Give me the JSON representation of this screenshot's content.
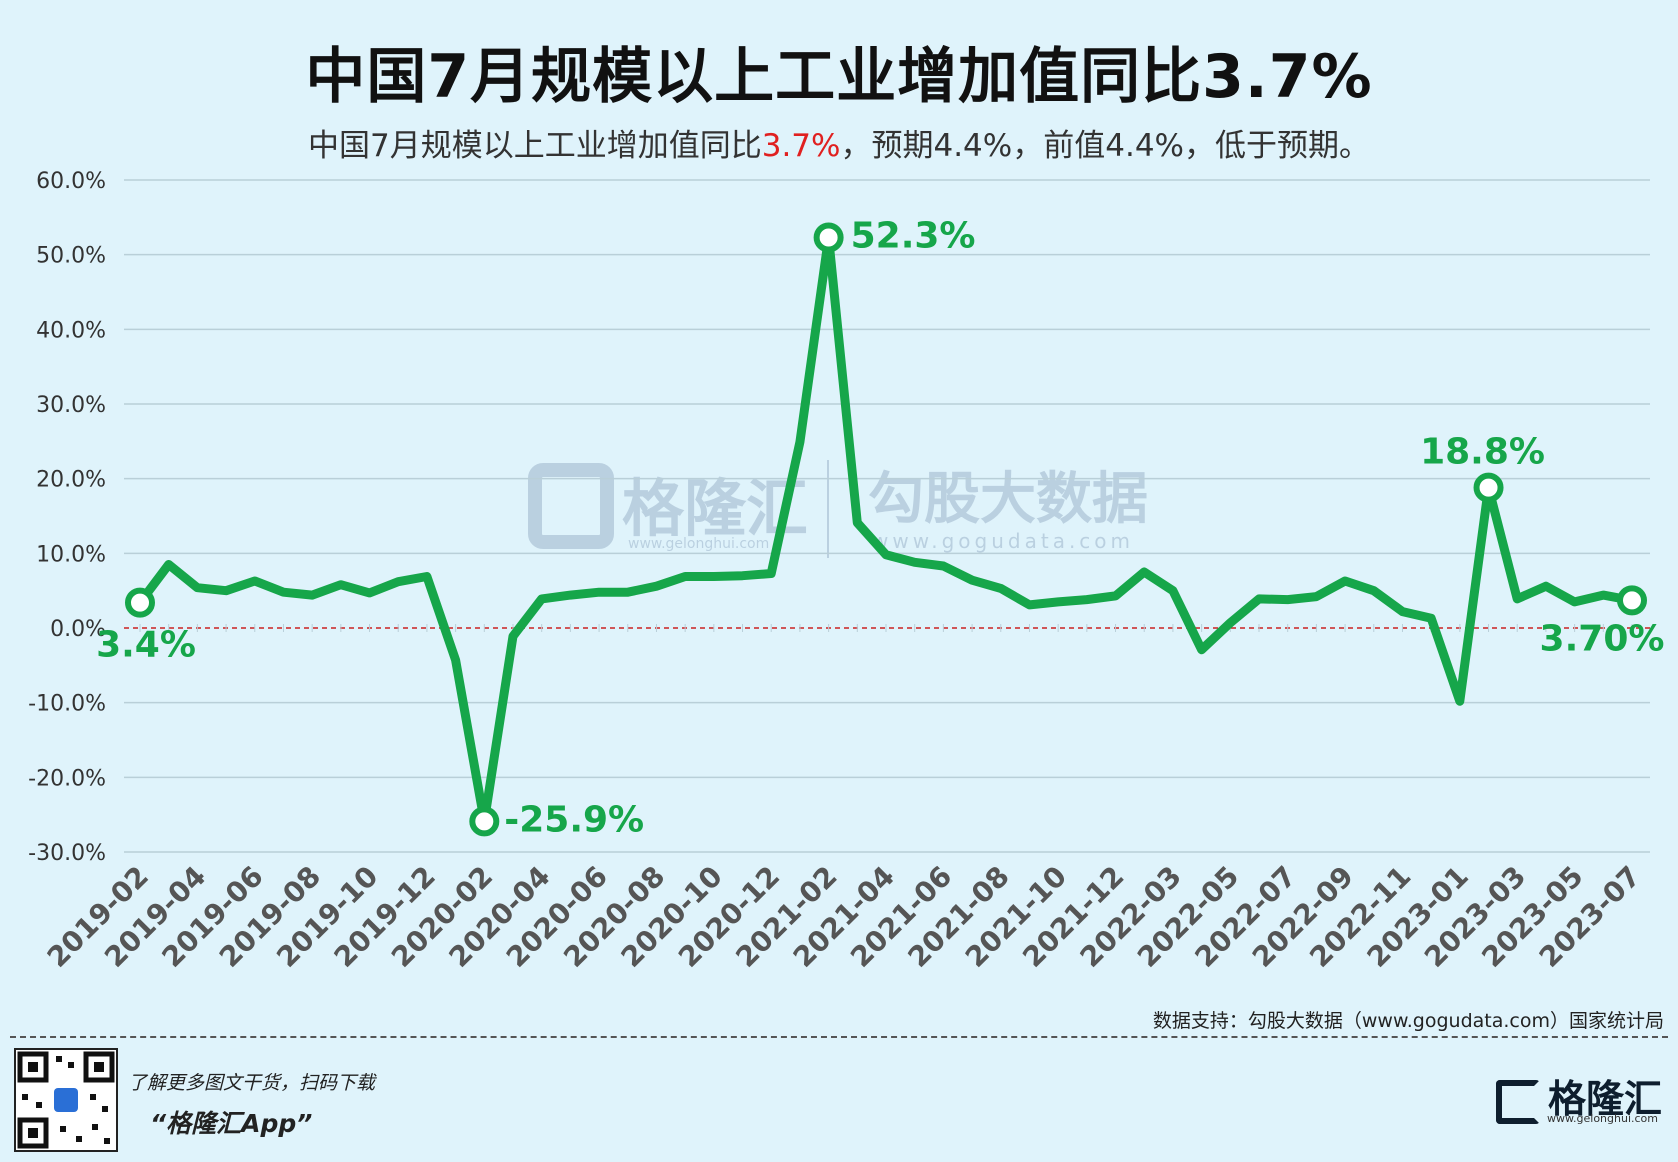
{
  "title": "中国7月规模以上工业增加值同比3.7%",
  "subtitle": {
    "before": "中国7月规模以上工业增加值同比",
    "highlight": "3.7%",
    "after": "，预期4.4%，前值4.4%，低于预期。"
  },
  "colors": {
    "line": "#16a64a",
    "zero_line": "#cc2222",
    "grid": "#b9cfd8",
    "highlight": "#e02020",
    "label": "#16a64a"
  },
  "watermark": {
    "left_cn": "格隆汇",
    "left_url": "www.gelonghui.com",
    "right_cn": "勾股大数据",
    "right_url": "www.gogudata.com"
  },
  "source": "数据支持：勾股大数据（www.gogudata.com）国家统计局",
  "footer": {
    "promo_line1": "了解更多图文干货，扫码下载",
    "promo_line2": "“格隆汇App”",
    "brand_name": "格隆汇",
    "brand_url": "www.gelonghui.com"
  },
  "chart_data": {
    "type": "line",
    "y_ticks": [
      "60.0%",
      "50.0%",
      "40.0%",
      "30.0%",
      "20.0%",
      "10.0%",
      "0.0%",
      "-10.0%",
      "-20.0%",
      "-30.0%"
    ],
    "ylim": [
      -30,
      60
    ],
    "x_tick_labels": [
      "2019-02",
      "2019-04",
      "2019-06",
      "2019-08",
      "2019-10",
      "2019-12",
      "2020-02",
      "2020-04",
      "2020-06",
      "2020-08",
      "2020-10",
      "2020-12",
      "2021-02",
      "2021-04",
      "2021-06",
      "2021-08",
      "2021-10",
      "2021-12",
      "2022-03",
      "2022-05",
      "2022-07",
      "2022-09",
      "2022-11",
      "2023-01",
      "2023-03",
      "2023-05",
      "2023-07"
    ],
    "x": [
      "2019-02",
      "2019-03",
      "2019-04",
      "2019-05",
      "2019-06",
      "2019-07",
      "2019-08",
      "2019-09",
      "2019-10",
      "2019-11",
      "2019-12",
      "2020-01",
      "2020-02",
      "2020-03",
      "2020-04",
      "2020-05",
      "2020-06",
      "2020-07",
      "2020-08",
      "2020-09",
      "2020-10",
      "2020-11",
      "2020-12",
      "2021-01",
      "2021-02",
      "2021-03",
      "2021-04",
      "2021-05",
      "2021-06",
      "2021-07",
      "2021-08",
      "2021-09",
      "2021-10",
      "2021-11",
      "2021-12",
      "2022-02",
      "2022-03",
      "2022-04",
      "2022-05",
      "2022-06",
      "2022-07",
      "2022-08",
      "2022-09",
      "2022-10",
      "2022-11",
      "2022-12",
      "2023-01",
      "2023-02",
      "2023-03",
      "2023-04",
      "2023-05",
      "2023-06",
      "2023-07"
    ],
    "values": [
      3.4,
      8.5,
      5.4,
      5.0,
      6.3,
      4.8,
      4.4,
      5.8,
      4.7,
      6.2,
      6.9,
      -4.3,
      -25.9,
      -1.1,
      3.9,
      4.4,
      4.8,
      4.8,
      5.6,
      6.9,
      6.9,
      7.0,
      7.3,
      24.9,
      52.3,
      14.1,
      9.8,
      8.8,
      8.3,
      6.4,
      5.3,
      3.1,
      3.5,
      3.8,
      4.3,
      7.5,
      5.0,
      -2.9,
      0.7,
      3.9,
      3.8,
      4.2,
      6.3,
      5.0,
      2.2,
      1.3,
      -9.8,
      18.8,
      3.9,
      5.6,
      3.5,
      4.4,
      3.7
    ],
    "annotations": [
      {
        "x": "2019-02",
        "label": "3.4%"
      },
      {
        "x": "2020-02",
        "label": "-25.9%"
      },
      {
        "x": "2021-02",
        "label": "52.3%"
      },
      {
        "x": "2023-02",
        "label": "18.8%"
      },
      {
        "x": "2023-07",
        "label": "3.70%"
      }
    ]
  }
}
